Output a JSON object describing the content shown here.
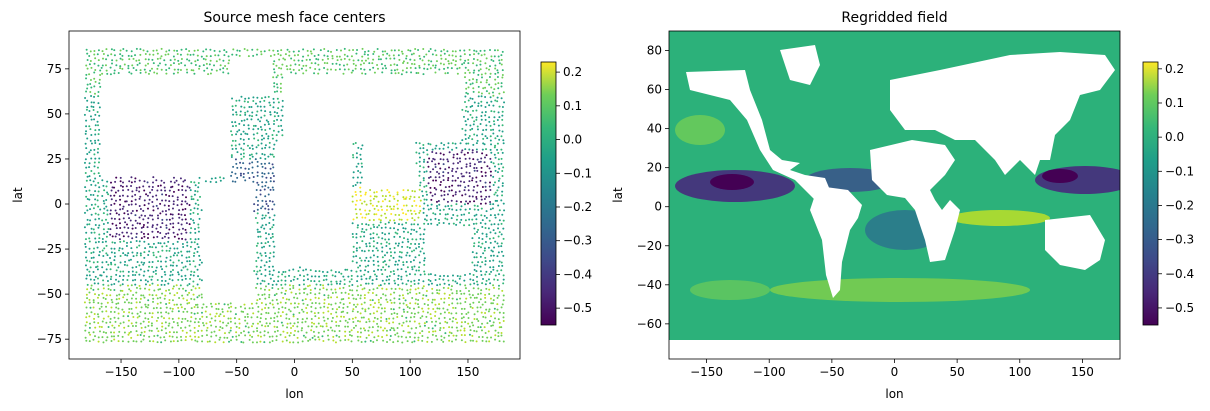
{
  "chart_data": [
    {
      "type": "scatter",
      "title": "Source mesh face centers",
      "xlabel": "lon",
      "ylabel": "lat",
      "xlim": [
        -195,
        195
      ],
      "ylim": [
        -86,
        96
      ],
      "xticks": [
        -150,
        -100,
        -50,
        0,
        50,
        100,
        150
      ],
      "yticks": [
        -75,
        -50,
        -25,
        0,
        25,
        50,
        75
      ],
      "grid": false,
      "colorbar": {
        "cmap": "viridis",
        "vmin": -0.55,
        "vmax": 0.23,
        "ticks": [
          0.2,
          0.1,
          0.0,
          -0.1,
          -0.2,
          -0.3,
          -0.4,
          -0.5
        ],
        "tick_labels": [
          "0.2",
          "0.1",
          "0.0",
          "−0.1",
          "−0.2",
          "−0.3",
          "−0.4",
          "−0.5"
        ]
      },
      "description_of_values": "ocean face centers colored by field value; strongly negative (≈ −0.5) in tropical east Pacific and tropical west Pacific, ≈ 0.0 to 0.1 elsewhere, ≈ 0.15–0.2 in the Arabian Sea / Bay of Bengal belt"
    },
    {
      "type": "heatmap",
      "title": "Regridded field",
      "xlabel": "lon",
      "ylabel": "lat",
      "xlim": [
        -180,
        180
      ],
      "ylim": [
        -78,
        90
      ],
      "xticks": [
        -150,
        -100,
        -50,
        0,
        50,
        100,
        150
      ],
      "yticks": [
        -60,
        -40,
        -20,
        0,
        20,
        40,
        60,
        80
      ],
      "grid": false,
      "colorbar": {
        "cmap": "viridis",
        "vmin": -0.55,
        "vmax": 0.22,
        "ticks": [
          0.2,
          0.1,
          0.0,
          -0.1,
          -0.2,
          -0.3,
          -0.4,
          -0.5
        ],
        "tick_labels": [
          "0.2",
          "0.1",
          "0.0",
          "−0.1",
          "−0.2",
          "−0.3",
          "−0.4",
          "−0.5"
        ]
      }
    }
  ]
}
